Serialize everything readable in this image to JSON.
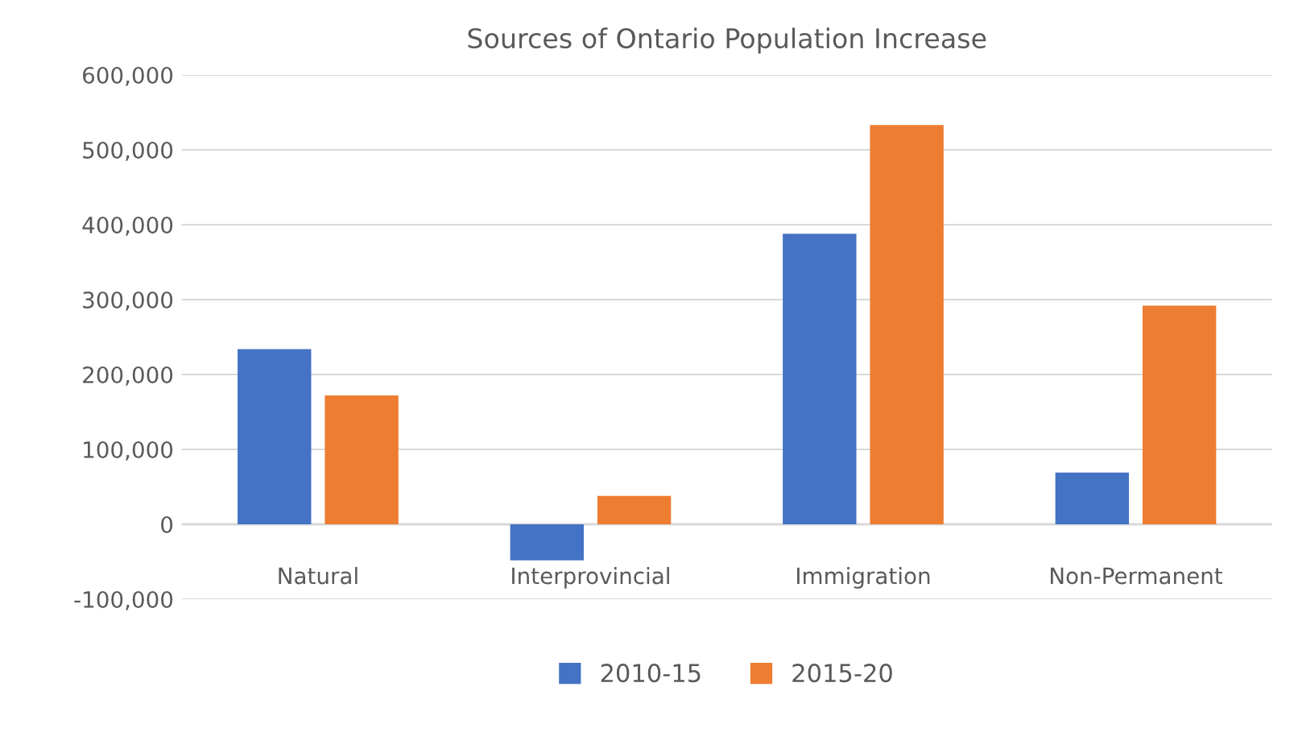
{
  "chart_data": {
    "type": "bar",
    "title": "Sources of Ontario Population Increase",
    "categories": [
      "Natural",
      "Interprovincial",
      "Immigration",
      "Non-Permanent"
    ],
    "series": [
      {
        "name": "2010-15",
        "color": "#4472c4",
        "values": [
          234000,
          -48000,
          388000,
          69000
        ]
      },
      {
        "name": "2015-20",
        "color": "#ed7d31",
        "values": [
          172000,
          38000,
          533000,
          292000
        ]
      }
    ],
    "ylim": [
      -100000,
      600000
    ],
    "yticks": [
      {
        "value": -100000,
        "label": "-100,000"
      },
      0,
      {
        "value": 100000,
        "label": "100,000"
      },
      {
        "value": 200000,
        "label": "200,000"
      },
      {
        "value": 300000,
        "label": "300,000"
      },
      {
        "value": 400000,
        "label": "400,000"
      },
      {
        "value": 500000,
        "label": "500,000"
      },
      {
        "value": 600000,
        "label": "600,000"
      }
    ],
    "grid": "y",
    "legend": "bottom"
  }
}
